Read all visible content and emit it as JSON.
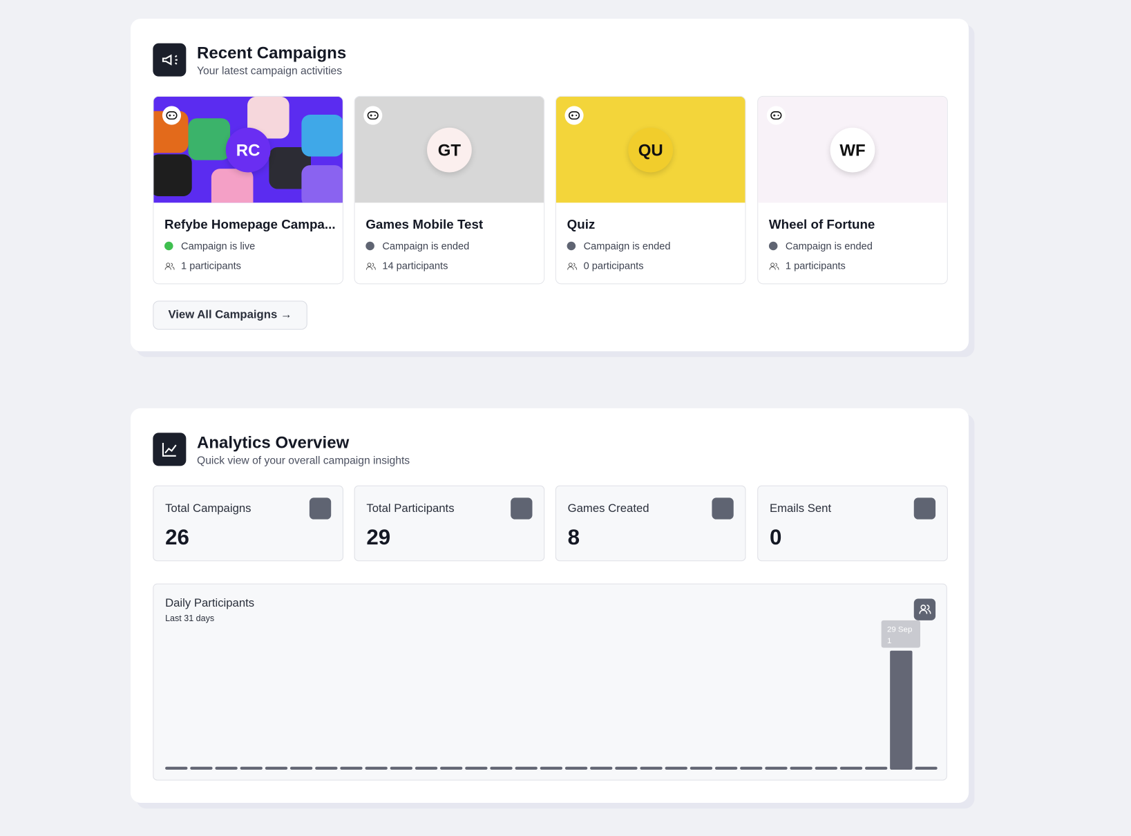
{
  "campaigns_section": {
    "title": "Recent Campaigns",
    "subtitle": "Your latest campaign activities",
    "campaigns": [
      {
        "initials": "RC",
        "name": "Refybe Homepage Campa...",
        "status": "Campaign is live",
        "participants": "1 participants",
        "bg": "#5b2cf0",
        "badge": "#6a2ef2",
        "badge_text": "#ffffff",
        "dot": "#3fbf4f"
      },
      {
        "initials": "GT",
        "name": "Games Mobile Test",
        "status": "Campaign is ended",
        "participants": "14 participants",
        "bg": "#d7d7d7",
        "badge": "#fbefee",
        "badge_text": "#111111",
        "dot": "#5f6472"
      },
      {
        "initials": "QU",
        "name": "Quiz",
        "status": "Campaign is ended",
        "participants": "0 participants",
        "bg": "#f3d53a",
        "badge": "#f1cd2c",
        "badge_text": "#111111",
        "dot": "#5f6472"
      },
      {
        "initials": "WF",
        "name": "Wheel of Fortune",
        "status": "Campaign is ended",
        "participants": "1 participants",
        "bg": "#f8f2f8",
        "badge": "#ffffff",
        "badge_text": "#111111",
        "dot": "#5f6472"
      }
    ],
    "button": "View All Campaigns"
  },
  "analytics_section": {
    "title": "Analytics Overview",
    "subtitle": "Quick view of your overall campaign insights",
    "stats": [
      {
        "label": "Total Campaigns",
        "value": 26
      },
      {
        "label": "Total Participants",
        "value": 29
      },
      {
        "label": "Games Created",
        "value": 8
      },
      {
        "label": "Emails Sent",
        "value": 0
      }
    ]
  },
  "chart_data": {
    "type": "bar",
    "title": "Daily Participants",
    "subtitle": "Last 31 days",
    "color": "#646775",
    "values": [
      0,
      0,
      0,
      0,
      0,
      0,
      0,
      0,
      0,
      0,
      0,
      0,
      0,
      0,
      0,
      0,
      0,
      0,
      0,
      0,
      0,
      0,
      0,
      0,
      0,
      0,
      0,
      0,
      0,
      1,
      0
    ],
    "ylim": [
      0,
      1
    ],
    "tooltip_label": "29 Sep",
    "tooltip_index": 29
  }
}
